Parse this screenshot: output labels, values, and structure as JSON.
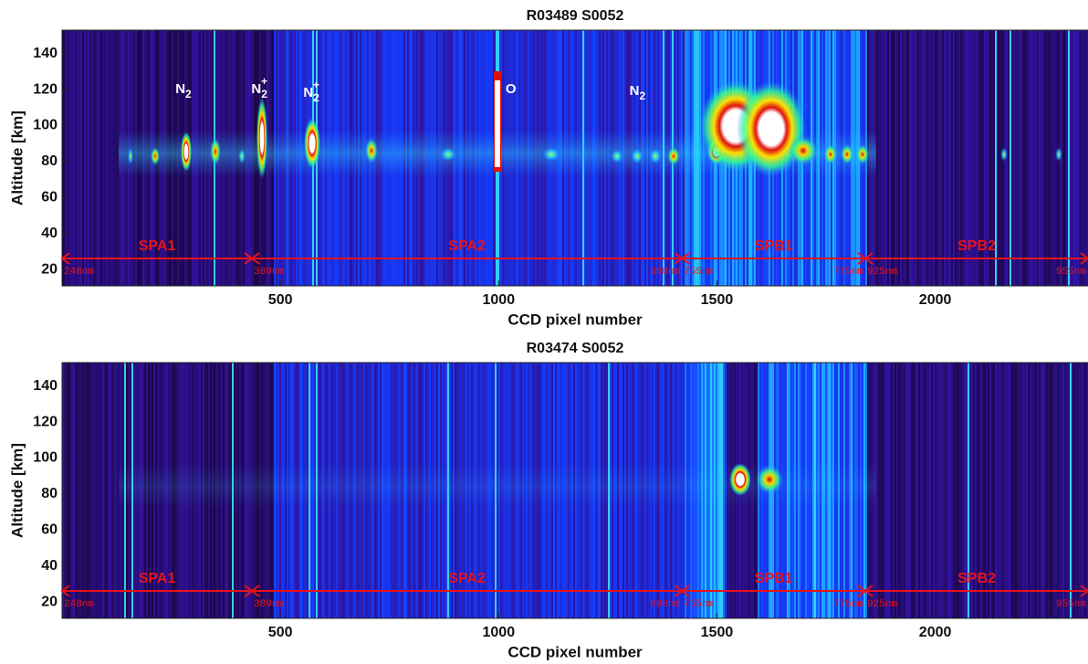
{
  "chart_data": [
    {
      "type": "heatmap",
      "title": "R03489 S0052",
      "x_label": "CCD pixel number",
      "y_label": "Altitude [km]",
      "xlim": [
        0,
        2350
      ],
      "ylim": [
        11,
        153
      ],
      "xticks": [
        500,
        1000,
        1500,
        2000
      ],
      "yticks": [
        20,
        40,
        60,
        80,
        100,
        120,
        140
      ],
      "grid": false,
      "regions": [
        {
          "name": "SPA1",
          "start": 0,
          "end": 435,
          "start_label": "248nm"
        },
        {
          "name": "SPA2",
          "start": 435,
          "end": 1420,
          "start_label": "389nm",
          "end_label": "690nm"
        },
        {
          "name": "SPB1",
          "start": 1420,
          "end": 1840,
          "start_label": "755nm",
          "end_label": "775nm"
        },
        {
          "name": "SPB2",
          "start": 1840,
          "end": 2350,
          "start_label": "925nm",
          "end_label": "955nm"
        }
      ],
      "annotations": [
        {
          "text": "N",
          "subscript": "2",
          "x": 278,
          "y": 120
        },
        {
          "text": "N",
          "subscript": "2",
          "superscript": "+",
          "x": 452,
          "y": 120
        },
        {
          "text": "N",
          "subscript": "2",
          "superscript": "+",
          "x": 571,
          "y": 118
        },
        {
          "text": "O",
          "x": 1028,
          "y": 120
        },
        {
          "text": "N",
          "subscript": "2",
          "x": 1318,
          "y": 119
        }
      ]
    },
    {
      "type": "heatmap",
      "title": "R03474 S0052",
      "x_label": "CCD pixel number",
      "y_label": "Altitude [km]",
      "xlim": [
        0,
        2350
      ],
      "ylim": [
        11,
        153
      ],
      "xticks": [
        500,
        1000,
        1500,
        2000
      ],
      "yticks": [
        20,
        40,
        60,
        80,
        100,
        120,
        140
      ],
      "grid": false,
      "regions": [
        {
          "name": "SPA1",
          "start": 0,
          "end": 435,
          "start_label": "248nm"
        },
        {
          "name": "SPA2",
          "start": 435,
          "end": 1420,
          "start_label": "389nm",
          "end_label": "690nm"
        },
        {
          "name": "SPB1",
          "start": 1420,
          "end": 1840,
          "start_label": "755nm",
          "end_label": "775nm"
        },
        {
          "name": "SPB2",
          "start": 1840,
          "end": 2350,
          "start_label": "925nm",
          "end_label": "955nm"
        }
      ],
      "annotations": []
    }
  ]
}
